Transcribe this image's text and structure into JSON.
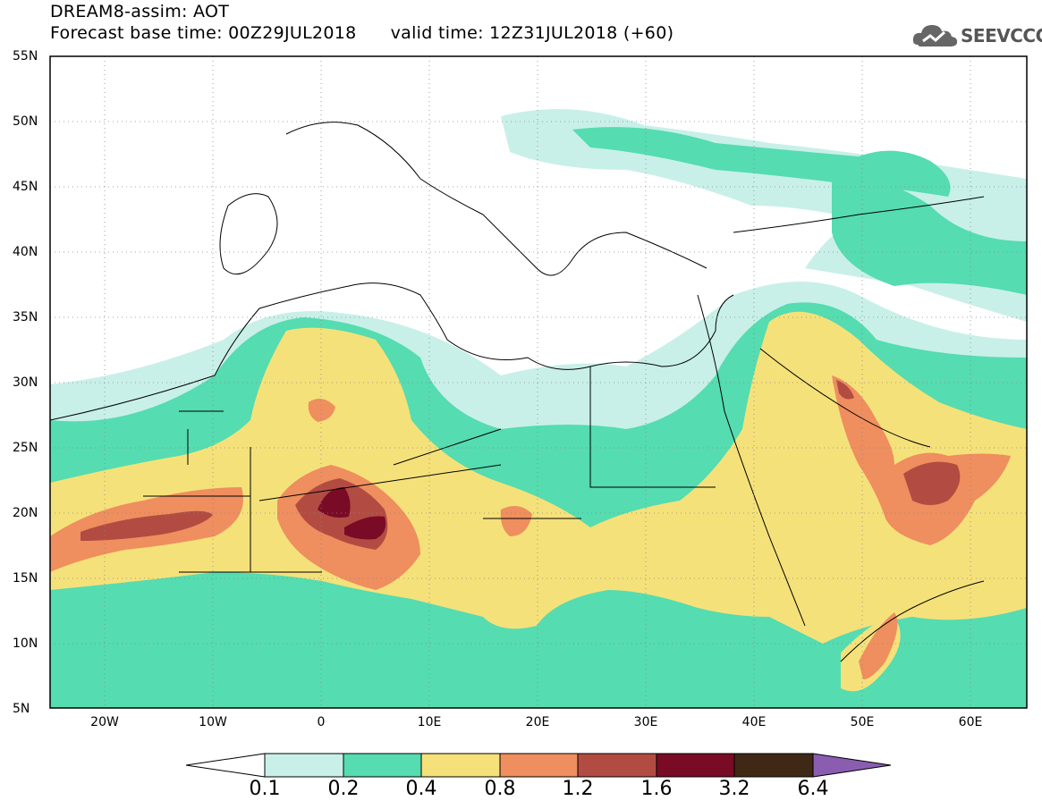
{
  "header": {
    "title": "DREAM8-assim: AOT",
    "base_time": "Forecast base time: 00Z29JUL2018",
    "valid_time": "valid time: 12Z31JUL2018 (+60)"
  },
  "logo": {
    "text": "SEEVCCC",
    "icon": "cloud-icon"
  },
  "map": {
    "lat_labels": [
      "55N",
      "50N",
      "45N",
      "40N",
      "35N",
      "30N",
      "25N",
      "20N",
      "15N",
      "10N",
      "5N"
    ],
    "lon_labels": [
      "20W",
      "10W",
      "0",
      "10E",
      "20E",
      "30E",
      "40E",
      "50E",
      "60E"
    ],
    "lat_range": [
      5,
      55
    ],
    "lon_range": [
      -25,
      65
    ],
    "grid": "dotted"
  },
  "colorbar": {
    "labels": [
      "0.1",
      "0.2",
      "0.4",
      "0.8",
      "1.2",
      "1.6",
      "3.2",
      "6.4"
    ],
    "colors": [
      "#ffffff",
      "#c8f0e8",
      "#55dcb0",
      "#f5e17a",
      "#ef8e5e",
      "#b24c42",
      "#7a0b27",
      "#3f2816",
      "#8a5db1"
    ]
  },
  "chart_data": {
    "type": "heatmap",
    "title": "DREAM8-assim: AOT",
    "levels": [
      0.1,
      0.2,
      0.4,
      0.8,
      1.2,
      1.6,
      3.2,
      6.4
    ],
    "xlim": [
      -25,
      65
    ],
    "ylim": [
      5,
      55
    ]
  }
}
